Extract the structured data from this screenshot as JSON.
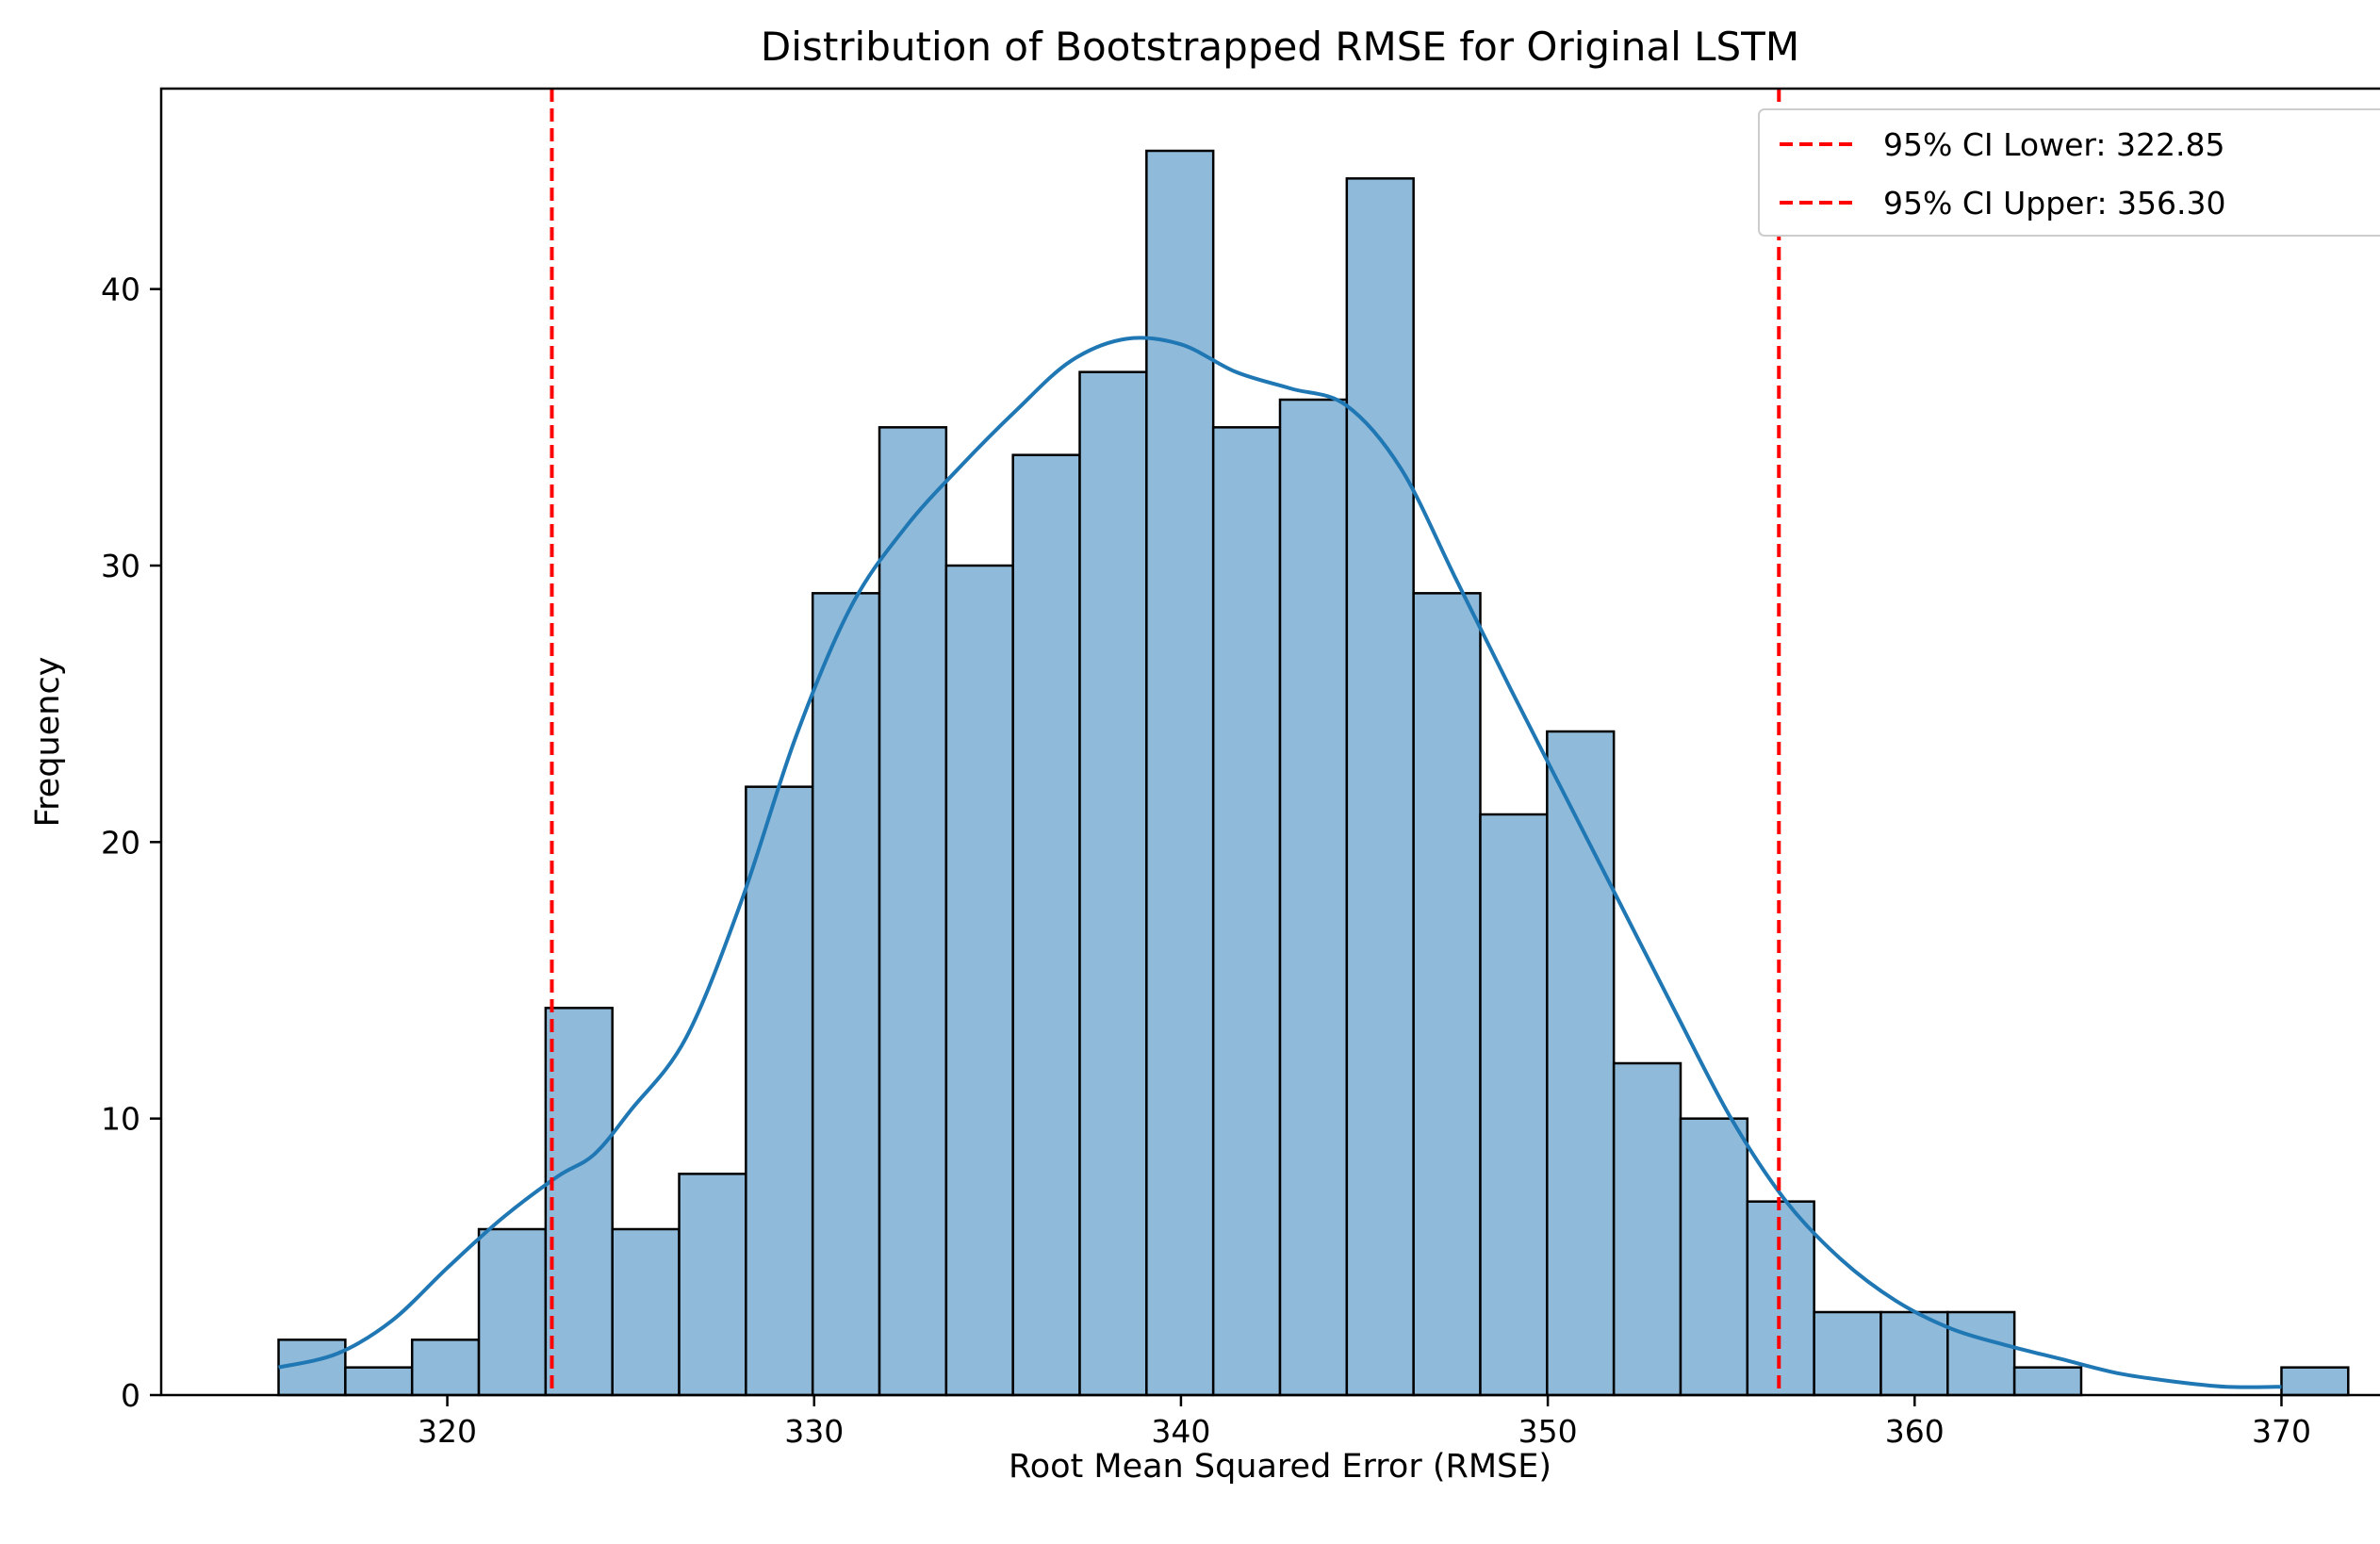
{
  "chart_data": {
    "type": "histogram",
    "title": "Distribution of Bootstrapped RMSE for Original LSTM",
    "xlabel": "Root Mean Squared Error (RMSE)",
    "ylabel": "Frequency",
    "xlim": [
      312.2,
      373.2
    ],
    "ylim": [
      0,
      47.25
    ],
    "xticks": [
      320,
      330,
      340,
      350,
      360,
      370
    ],
    "yticks": [
      0,
      10,
      20,
      30,
      40
    ],
    "grid": false,
    "legend_position": "top-right",
    "bar_color": "#8fbada",
    "bar_edge_color": "#000000",
    "kde_color": "#1f77b4",
    "ci_color": "#ff0000",
    "bins": {
      "start": 315.4,
      "width": 1.82,
      "counts": [
        2,
        1,
        2,
        6,
        14,
        6,
        8,
        22,
        29,
        35,
        30,
        34,
        37,
        45,
        35,
        36,
        44,
        29,
        21,
        24,
        12,
        10,
        7,
        3,
        3,
        3,
        1,
        0,
        0,
        0,
        1
      ]
    },
    "kde": {
      "x": [
        315.4,
        317,
        318.5,
        320,
        321.5,
        323,
        324,
        325,
        326.5,
        328,
        329.5,
        331,
        332.5,
        334,
        335.5,
        337,
        338.5,
        340,
        341.5,
        343,
        344.5,
        346,
        347.5,
        349,
        350.5,
        352,
        353.5,
        355,
        356.5,
        358,
        359.5,
        361,
        362.5,
        364,
        365.5,
        367,
        368.5,
        370
      ],
      "y": [
        1.0,
        1.5,
        2.7,
        4.6,
        6.4,
        7.9,
        8.7,
        10.3,
        12.9,
        17.8,
        23.8,
        28.5,
        31.4,
        33.6,
        35.6,
        37.4,
        38.2,
        38.0,
        37.0,
        36.4,
        35.8,
        33.5,
        29.5,
        25.5,
        21.6,
        17.7,
        13.8,
        10.0,
        7.0,
        4.9,
        3.4,
        2.4,
        1.8,
        1.3,
        0.8,
        0.5,
        0.3,
        0.3
      ]
    },
    "ci_lines": [
      {
        "label": "95% CI Lower: 322.85",
        "x": 322.85
      },
      {
        "label": "95% CI Upper: 356.30",
        "x": 356.3
      }
    ]
  }
}
